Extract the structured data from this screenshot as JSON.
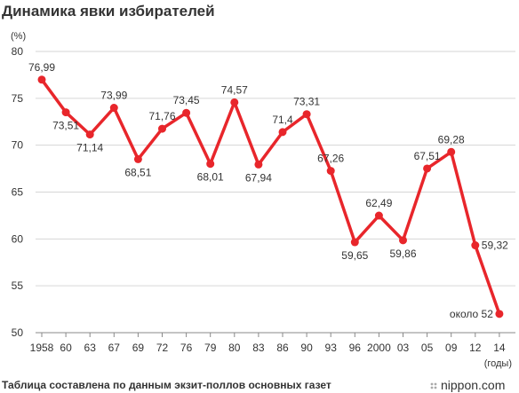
{
  "chart_data": {
    "type": "line",
    "title": "Динамика явки избирателей",
    "ylabel": "(%)",
    "xlabel": "(годы)",
    "ylim": [
      50,
      80
    ],
    "yticks": [
      50,
      55,
      60,
      65,
      70,
      75,
      80
    ],
    "grid": true,
    "categories": [
      "1958",
      "60",
      "63",
      "67",
      "69",
      "72",
      "76",
      "79",
      "80",
      "83",
      "86",
      "90",
      "93",
      "96",
      "2000",
      "03",
      "05",
      "09",
      "12",
      "14"
    ],
    "values": [
      76.99,
      73.51,
      71.14,
      73.99,
      68.51,
      71.76,
      73.45,
      68.01,
      74.57,
      67.94,
      71.4,
      73.31,
      67.26,
      59.65,
      62.49,
      59.86,
      67.51,
      69.28,
      59.32,
      52
    ],
    "data_labels": [
      "76,99",
      "73,51",
      "71,14",
      "73,99",
      "68,51",
      "71,76",
      "73,45",
      "68,01",
      "74,57",
      "67,94",
      "71,4",
      "73,31",
      "67,26",
      "59,65",
      "62,49",
      "59,86",
      "67,51",
      "69,28",
      "59,32",
      "около 52"
    ],
    "label_positions": [
      "above",
      "below",
      "below",
      "above",
      "below",
      "above",
      "above",
      "below",
      "above",
      "below",
      "above",
      "above",
      "above",
      "below",
      "above",
      "below",
      "above",
      "above",
      "right",
      "left"
    ],
    "line_color": "#e8262b"
  },
  "footer": {
    "source": "Таблица составлена по данным экзит-поллов основных газет",
    "watermark": "nippon.com"
  }
}
